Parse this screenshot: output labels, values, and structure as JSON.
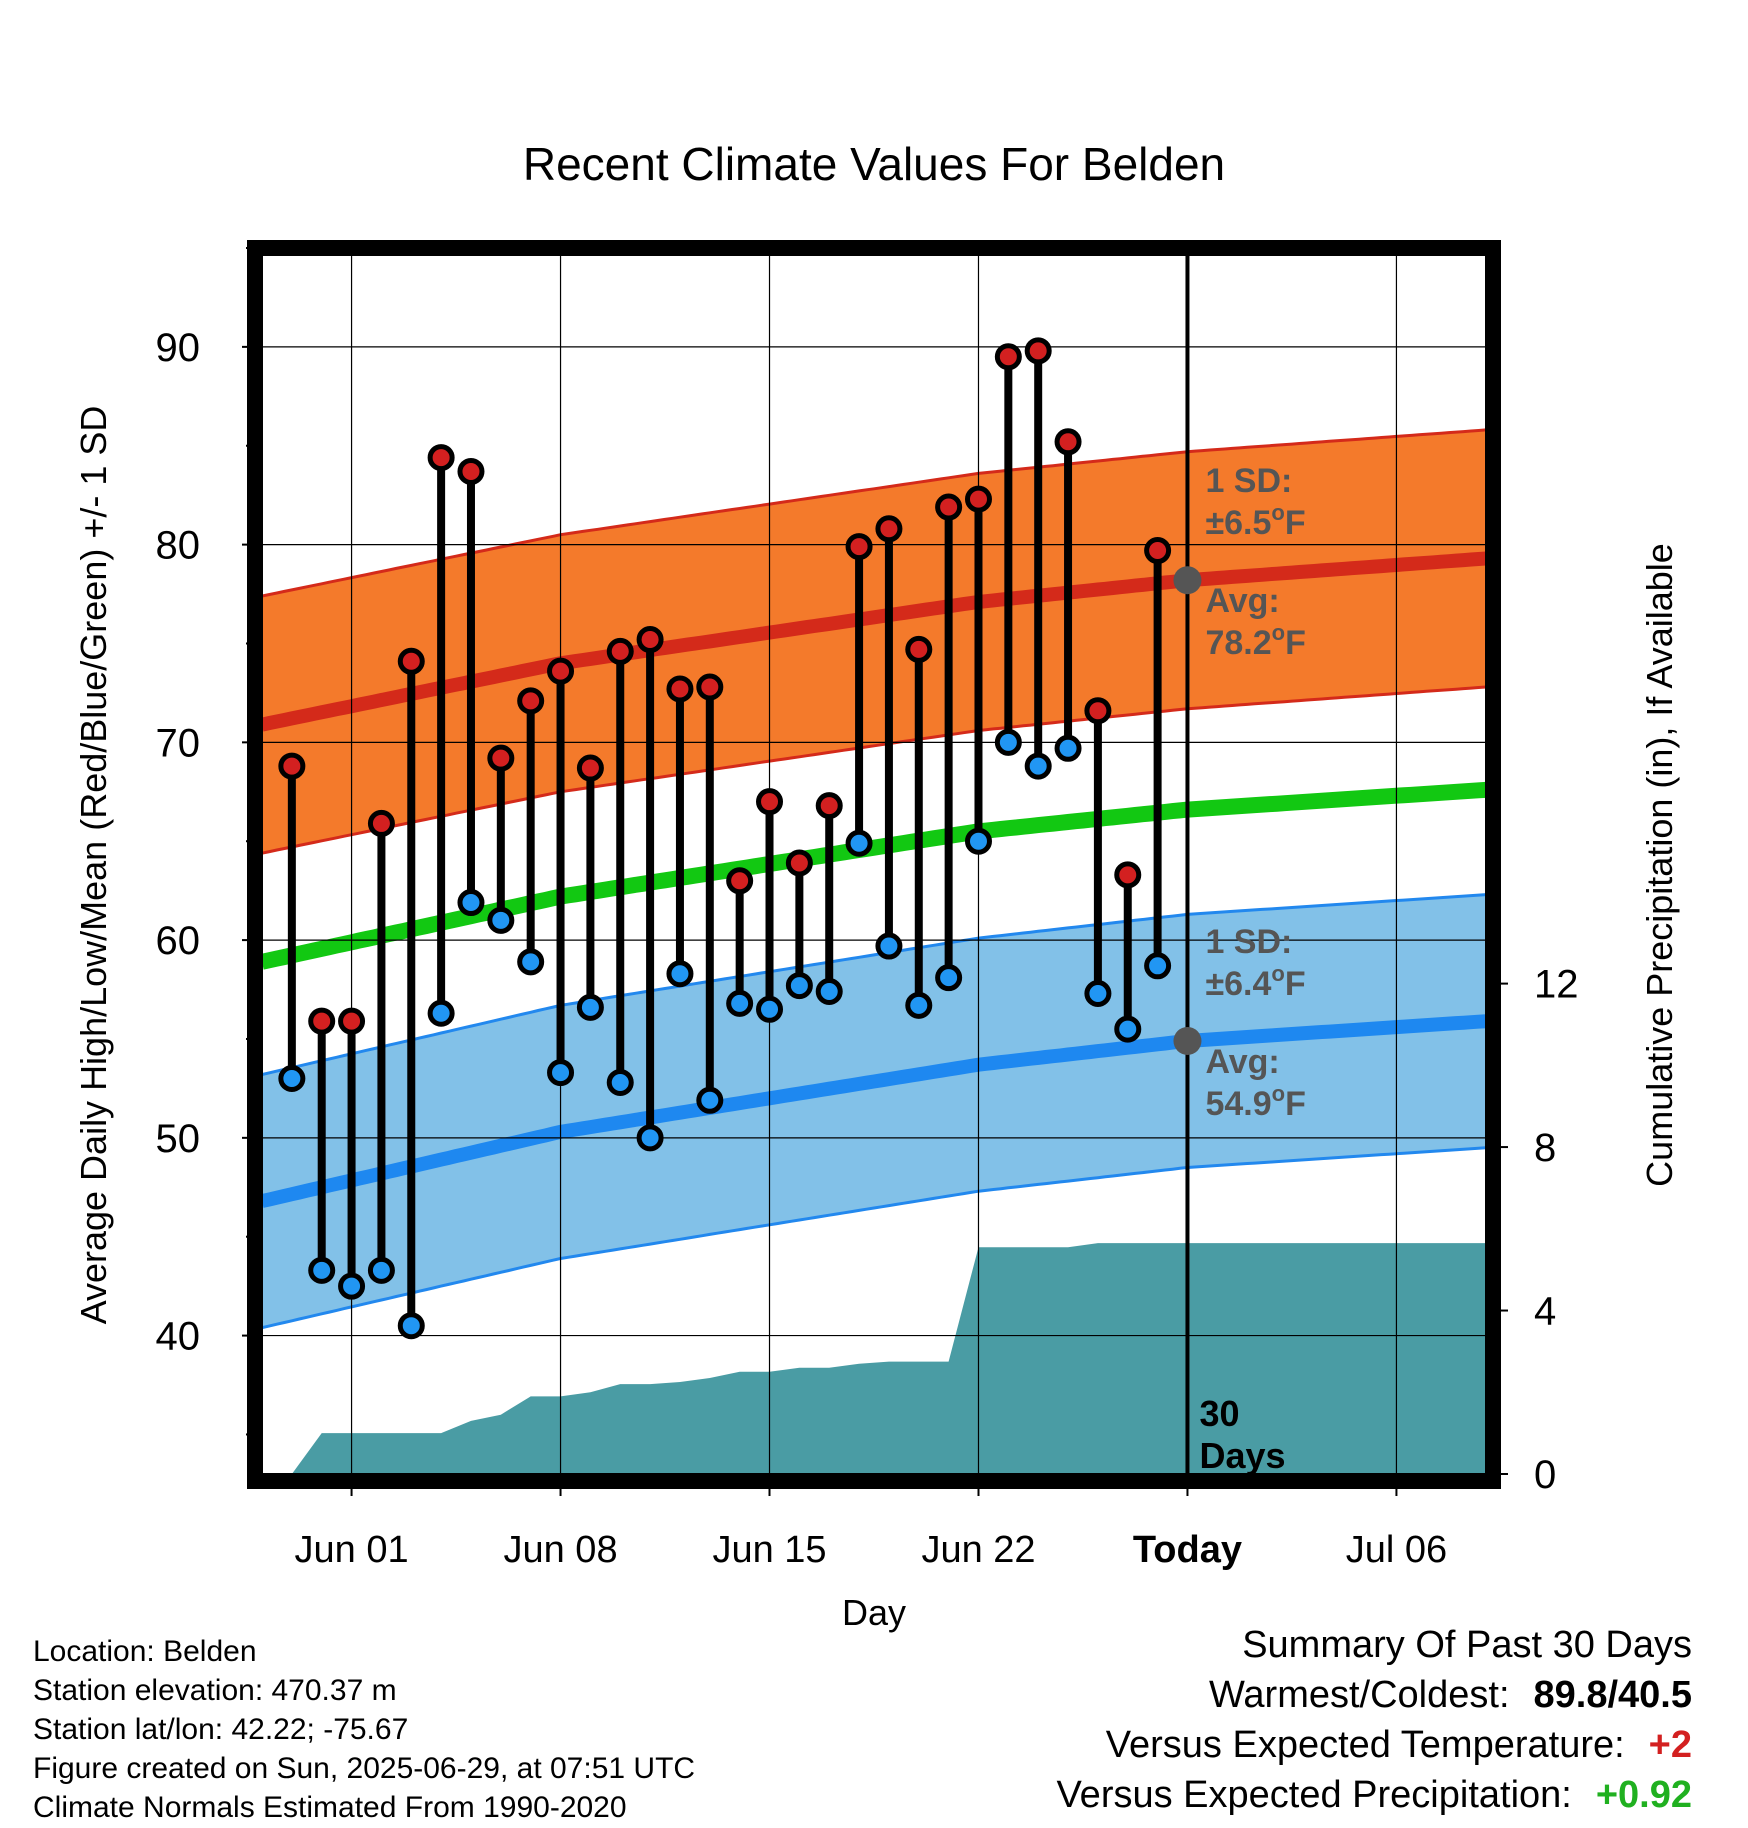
{
  "colors": {
    "high_band": "#f47a2b",
    "high_band_edge": "#d42a1a",
    "high_avg": "#d42a1a",
    "low_band": "#82c1e8",
    "low_band_edge": "#2288ee",
    "low_avg": "#1e88f0",
    "mean_line": "#12c812",
    "precip_fill": "#4a9ca4",
    "high_marker": "#d32020",
    "low_marker": "#2196f3",
    "annotation_text": "#555555",
    "annotation_dot": "#555555",
    "warm_value": "#d32020",
    "precip_value": "#20b020"
  },
  "chart_data": {
    "type": "line",
    "title": "Recent Climate Values For Belden",
    "xlabel": "Day",
    "ylabel": "Average Daily High/Low/Mean (Red/Blue/Green) +/- 1 SD",
    "y2label": "Cumulative Precipitation (in), If Available",
    "x_range": [
      "2025-05-29",
      "2025-07-09"
    ],
    "ylim": [
      33,
      95
    ],
    "y2lim": [
      0,
      30
    ],
    "yticks": [
      40,
      50,
      60,
      70,
      80,
      90
    ],
    "y2ticks": [
      0,
      4,
      8,
      12
    ],
    "xticks": [
      {
        "date": "2025-06-01",
        "label": "Jun 01"
      },
      {
        "date": "2025-06-08",
        "label": "Jun 08"
      },
      {
        "date": "2025-06-15",
        "label": "Jun 15"
      },
      {
        "date": "2025-06-22",
        "label": "Jun 22"
      },
      {
        "date": "2025-06-29",
        "label": "Today"
      },
      {
        "date": "2025-07-06",
        "label": "Jul 06"
      }
    ],
    "grid": true,
    "today": "2025-06-29",
    "window_label": "30 Days",
    "normals": {
      "dates": [
        "2025-05-29",
        "2025-06-08",
        "2025-06-22",
        "2025-06-29",
        "2025-07-09"
      ],
      "high_avg": [
        70.9,
        74.0,
        77.1,
        78.2,
        79.3
      ],
      "high_sd": 6.5,
      "low_avg": [
        46.8,
        50.3,
        53.7,
        54.9,
        55.9
      ],
      "low_sd": 6.4,
      "mean": [
        58.9,
        62.2,
        65.5,
        66.6,
        67.6
      ]
    },
    "daily": [
      {
        "date": "2025-05-30",
        "high": 68.8,
        "low": 53.0
      },
      {
        "date": "2025-05-31",
        "high": 55.9,
        "low": 43.3
      },
      {
        "date": "2025-06-01",
        "high": 55.9,
        "low": 42.5
      },
      {
        "date": "2025-06-02",
        "high": 65.9,
        "low": 43.3
      },
      {
        "date": "2025-06-03",
        "high": 74.1,
        "low": 40.5
      },
      {
        "date": "2025-06-04",
        "high": 84.4,
        "low": 56.3
      },
      {
        "date": "2025-06-05",
        "high": 83.7,
        "low": 61.9
      },
      {
        "date": "2025-06-06",
        "high": 69.2,
        "low": 61.0
      },
      {
        "date": "2025-06-07",
        "high": 72.1,
        "low": 58.9
      },
      {
        "date": "2025-06-08",
        "high": 73.6,
        "low": 53.3
      },
      {
        "date": "2025-06-09",
        "high": 68.7,
        "low": 56.6
      },
      {
        "date": "2025-06-10",
        "high": 74.6,
        "low": 52.8
      },
      {
        "date": "2025-06-11",
        "high": 75.2,
        "low": 50.0
      },
      {
        "date": "2025-06-12",
        "high": 72.7,
        "low": 58.3
      },
      {
        "date": "2025-06-13",
        "high": 72.8,
        "low": 51.9
      },
      {
        "date": "2025-06-14",
        "high": 63.0,
        "low": 56.8
      },
      {
        "date": "2025-06-15",
        "high": 67.0,
        "low": 56.5
      },
      {
        "date": "2025-06-16",
        "high": 63.9,
        "low": 57.7
      },
      {
        "date": "2025-06-17",
        "high": 66.8,
        "low": 57.4
      },
      {
        "date": "2025-06-18",
        "high": 79.9,
        "low": 64.9
      },
      {
        "date": "2025-06-19",
        "high": 80.8,
        "low": 59.7
      },
      {
        "date": "2025-06-20",
        "high": 74.7,
        "low": 56.7
      },
      {
        "date": "2025-06-21",
        "high": 81.9,
        "low": 58.1
      },
      {
        "date": "2025-06-22",
        "high": 82.3,
        "low": 65.0
      },
      {
        "date": "2025-06-23",
        "high": 89.5,
        "low": 70.0
      },
      {
        "date": "2025-06-24",
        "high": 89.8,
        "low": 68.8
      },
      {
        "date": "2025-06-25",
        "high": 85.2,
        "low": 69.7
      },
      {
        "date": "2025-06-26",
        "high": 71.6,
        "low": 57.3
      },
      {
        "date": "2025-06-27",
        "high": 63.3,
        "low": 55.5
      },
      {
        "date": "2025-06-28",
        "high": 79.7,
        "low": 58.7
      }
    ],
    "precipitation": {
      "dates": [
        "2025-05-30",
        "2025-05-31",
        "2025-06-03",
        "2025-06-04",
        "2025-06-05",
        "2025-06-06",
        "2025-06-07",
        "2025-06-08",
        "2025-06-09",
        "2025-06-10",
        "2025-06-11",
        "2025-06-12",
        "2025-06-13",
        "2025-06-14",
        "2025-06-15",
        "2025-06-16",
        "2025-06-17",
        "2025-06-18",
        "2025-06-19",
        "2025-06-20",
        "2025-06-21",
        "2025-06-22",
        "2025-06-23",
        "2025-06-24",
        "2025-06-25",
        "2025-06-26",
        "2025-06-27",
        "2025-06-28",
        "2025-06-29",
        "2025-07-09"
      ],
      "cumulative": [
        0.0,
        1.0,
        1.0,
        1.0,
        1.3,
        1.45,
        1.9,
        1.9,
        2.0,
        2.2,
        2.2,
        2.25,
        2.35,
        2.5,
        2.5,
        2.6,
        2.6,
        2.7,
        2.75,
        2.75,
        2.75,
        5.55,
        5.55,
        5.55,
        5.55,
        5.65,
        5.65,
        5.65,
        5.65,
        5.65
      ]
    },
    "annotations": {
      "high": {
        "sd_label": "1 SD:",
        "sd_value": "±6.5",
        "avg_label": "Avg:",
        "avg_value": "78.2",
        "avg": 78.2
      },
      "low": {
        "sd_label": "1 SD:",
        "sd_value": "±6.4",
        "avg_label": "Avg:",
        "avg_value": "54.9",
        "avg": 54.9
      },
      "unit": "F",
      "degree": "o"
    }
  },
  "footer": {
    "location": "Location: Belden",
    "elevation": "Station elevation: 470.37 m",
    "latlon": "Station lat/lon: 42.22; -75.67",
    "created": "Figure created on Sun, 2025-06-29, at 07:51 UTC",
    "normals": "Climate Normals Estimated From 1990-2020"
  },
  "summary": {
    "title": "Summary Of Past 30 Days",
    "warmest_coldest_label": "Warmest/Coldest:",
    "warmest_coldest_value": "89.8/40.5",
    "temp_label": "Versus Expected Temperature:",
    "temp_value": "+2",
    "precip_label": "Versus Expected Precipitation:",
    "precip_value": "+0.92"
  }
}
